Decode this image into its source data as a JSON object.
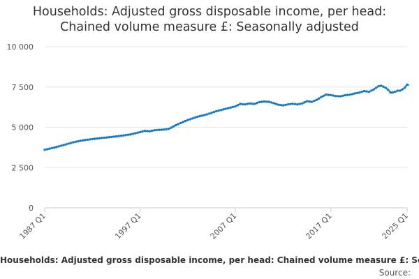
{
  "title_line_1": "Households: Adjusted gross disposable income, per head:",
  "title_line_2": "Chained volume measure £: Seasonally adjusted",
  "legend_text": "Households: Adjusted gross disposable income, per head: Chained volume measure £: Seasonally adjusted",
  "source_label": "Source:",
  "colors": {
    "series": "#1a7bbf",
    "grid": "#e6e6e6",
    "axis": "#cccccc",
    "text": "#555555"
  },
  "chart_data": {
    "type": "line",
    "title": "Households: Adjusted gross disposable income, per head: Chained volume measure £: Seasonally adjusted",
    "xlabel": "",
    "ylabel": "",
    "ylim": [
      0,
      10000
    ],
    "y_ticks": [
      {
        "value": 0,
        "label": "0"
      },
      {
        "value": 2500,
        "label": "2 500"
      },
      {
        "value": 5000,
        "label": "5 000"
      },
      {
        "value": 7500,
        "label": "7 500"
      },
      {
        "value": 10000,
        "label": "10 000"
      }
    ],
    "x_ticks": [
      {
        "value": 1987.0,
        "label": "1987 Q1"
      },
      {
        "value": 1997.0,
        "label": "1997 Q1"
      },
      {
        "value": 2007.0,
        "label": "2007 Q1"
      },
      {
        "value": 2017.0,
        "label": "2017 Q1"
      },
      {
        "value": 2025.0,
        "label": "2025 Q1"
      }
    ],
    "xlim": [
      1987.0,
      2025.0
    ],
    "grid": true,
    "series": [
      {
        "points": [
          [
            1987.0,
            3600
          ],
          [
            1988.0,
            3740
          ],
          [
            1989.0,
            3900
          ],
          [
            1990.0,
            4070
          ],
          [
            1991.0,
            4190
          ],
          [
            1992.0,
            4270
          ],
          [
            1993.0,
            4340
          ],
          [
            1994.0,
            4400
          ],
          [
            1995.0,
            4470
          ],
          [
            1996.0,
            4560
          ],
          [
            1997.0,
            4700
          ],
          [
            1997.5,
            4780
          ],
          [
            1998.0,
            4750
          ],
          [
            1998.5,
            4820
          ],
          [
            1999.0,
            4840
          ],
          [
            1999.5,
            4860
          ],
          [
            2000.0,
            4900
          ],
          [
            2001.0,
            5200
          ],
          [
            2002.0,
            5450
          ],
          [
            2003.0,
            5650
          ],
          [
            2004.0,
            5800
          ],
          [
            2005.0,
            6000
          ],
          [
            2006.0,
            6150
          ],
          [
            2007.0,
            6300
          ],
          [
            2007.5,
            6450
          ],
          [
            2008.0,
            6420
          ],
          [
            2008.5,
            6480
          ],
          [
            2009.0,
            6450
          ],
          [
            2009.5,
            6560
          ],
          [
            2010.0,
            6600
          ],
          [
            2010.5,
            6580
          ],
          [
            2011.0,
            6500
          ],
          [
            2011.5,
            6400
          ],
          [
            2012.0,
            6360
          ],
          [
            2012.5,
            6420
          ],
          [
            2013.0,
            6460
          ],
          [
            2013.5,
            6420
          ],
          [
            2014.0,
            6480
          ],
          [
            2014.5,
            6620
          ],
          [
            2015.0,
            6580
          ],
          [
            2015.5,
            6700
          ],
          [
            2016.0,
            6880
          ],
          [
            2016.5,
            7030
          ],
          [
            2017.0,
            7000
          ],
          [
            2017.5,
            6940
          ],
          [
            2018.0,
            6920
          ],
          [
            2018.5,
            6990
          ],
          [
            2019.0,
            7020
          ],
          [
            2019.5,
            7100
          ],
          [
            2020.0,
            7150
          ],
          [
            2020.5,
            7250
          ],
          [
            2021.0,
            7200
          ],
          [
            2021.5,
            7350
          ],
          [
            2022.0,
            7550
          ],
          [
            2022.3,
            7580
          ],
          [
            2022.7,
            7470
          ],
          [
            2023.0,
            7330
          ],
          [
            2023.3,
            7130
          ],
          [
            2023.7,
            7200
          ],
          [
            2024.0,
            7270
          ],
          [
            2024.3,
            7280
          ],
          [
            2024.7,
            7420
          ],
          [
            2025.0,
            7650
          ],
          [
            2025.2,
            7600
          ]
        ]
      }
    ]
  }
}
